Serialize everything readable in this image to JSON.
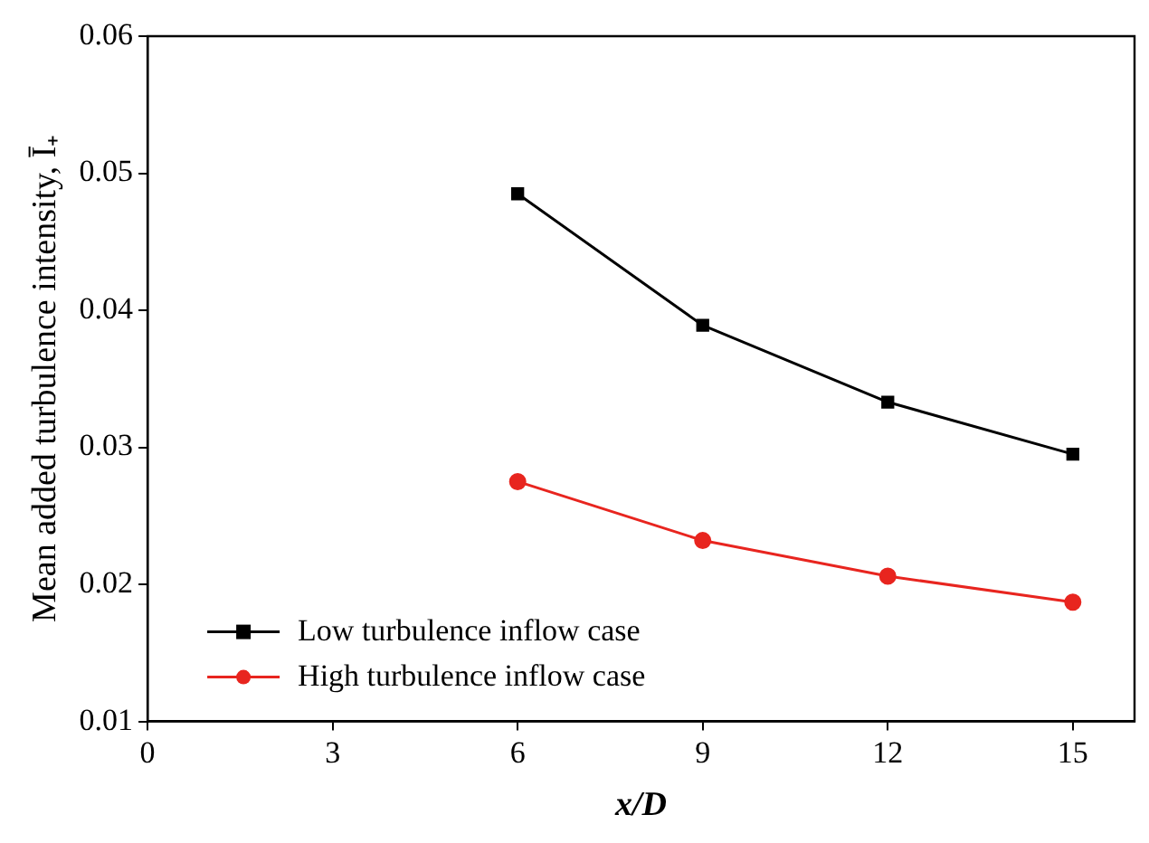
{
  "chart_data": {
    "type": "line",
    "xlabel": "x/D",
    "ylabel": "Mean added turbulence intensity, Ī₊",
    "x": [
      6,
      9,
      12,
      15
    ],
    "series": [
      {
        "name": "Low turbulence inflow case",
        "color": "#000000",
        "marker": "square",
        "values": [
          0.0485,
          0.0389,
          0.0333,
          0.0295
        ]
      },
      {
        "name": "High turbulence inflow case",
        "color": "#e8251f",
        "marker": "circle",
        "values": [
          0.0275,
          0.0232,
          0.0206,
          0.0187
        ]
      }
    ],
    "xlim": [
      0,
      16
    ],
    "xticks": [
      0,
      3,
      6,
      9,
      12,
      15
    ],
    "ylim": [
      0.01,
      0.06
    ],
    "yticks": [
      0.01,
      0.02,
      0.03,
      0.04,
      0.05,
      0.06
    ],
    "grid": false,
    "legend": "bottom left",
    "line_style": "solid"
  }
}
